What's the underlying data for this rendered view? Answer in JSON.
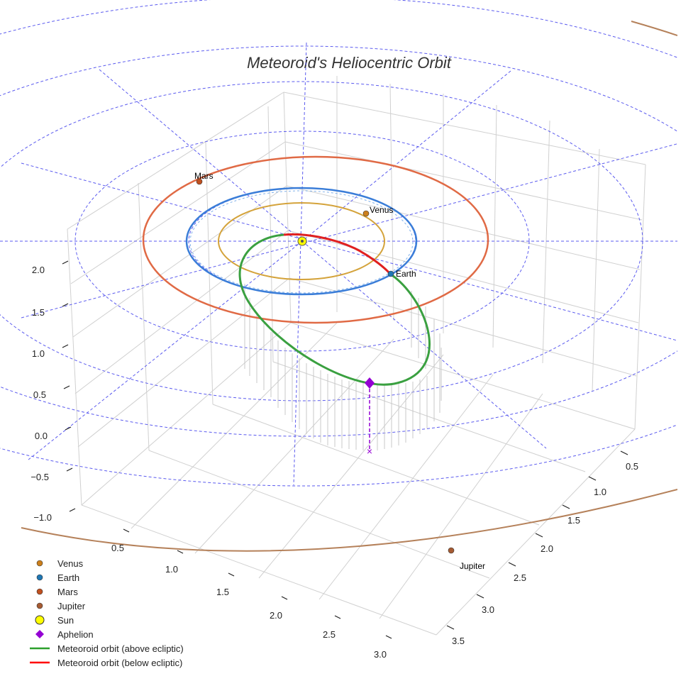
{
  "chart_data": {
    "type": "3d-orbit",
    "title": "Meteoroid's Heliocentric Orbit",
    "z_ticks": [
      "2.0",
      "1.5",
      "1.0",
      "0.5",
      "0.0",
      "−0.5",
      "−1.0"
    ],
    "y_ticks": [
      "0.5",
      "1.0",
      "1.5",
      "2.0",
      "2.5",
      "3.0"
    ],
    "x_ticks": [
      "0.5",
      "1.0",
      "1.5",
      "2.0",
      "2.5",
      "3.0",
      "3.5"
    ],
    "orbits": [
      {
        "name": "Venus",
        "a_au": 0.72,
        "color": "#d4a33b"
      },
      {
        "name": "Earth",
        "a_au": 1.0,
        "color": "#3a7dd8"
      },
      {
        "name": "Mars",
        "a_au": 1.52,
        "color": "#e06a45"
      },
      {
        "name": "Jupiter",
        "a_au": 5.2,
        "color": "#b5815a"
      }
    ],
    "planet_labels": [
      {
        "name": "Venus"
      },
      {
        "name": "Earth"
      },
      {
        "name": "Mars"
      },
      {
        "name": "Jupiter"
      }
    ],
    "legend": [
      {
        "label": "Venus",
        "marker": "circle",
        "color": "#cc7f1b"
      },
      {
        "label": "Earth",
        "marker": "circle",
        "color": "#1f77b4"
      },
      {
        "label": "Mars",
        "marker": "circle",
        "color": "#c0501f"
      },
      {
        "label": "Jupiter",
        "marker": "circle",
        "color": "#a65b32"
      },
      {
        "label": "Sun",
        "marker": "circle-big",
        "color": "#ffff00"
      },
      {
        "label": "Aphelion",
        "marker": "diamond",
        "color": "#9400d3"
      },
      {
        "label": "Meteoroid orbit (above ecliptic)",
        "marker": "line",
        "color": "#2ca02c"
      },
      {
        "label": "Meteoroid orbit (below ecliptic)",
        "marker": "line",
        "color": "#ff0000"
      }
    ]
  }
}
